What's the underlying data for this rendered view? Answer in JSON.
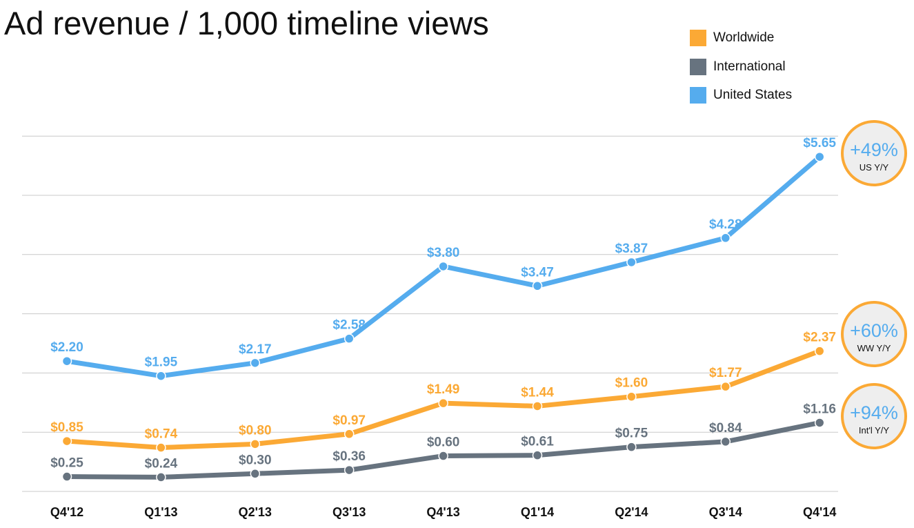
{
  "title": "Ad revenue / 1,000 timeline views",
  "legend": [
    {
      "name": "Worldwide",
      "color": "#FBA935"
    },
    {
      "name": "International",
      "color": "#67737F"
    },
    {
      "name": "United States",
      "color": "#55ACEE"
    }
  ],
  "chart_data": {
    "type": "line",
    "title": "Ad revenue / 1,000 timeline views",
    "categories": [
      "Q4'12",
      "Q1'13",
      "Q2'13",
      "Q3'13",
      "Q4'13",
      "Q1'14",
      "Q2'14",
      "Q3'14",
      "Q4'14"
    ],
    "ylim": [
      0,
      6
    ],
    "grid": true,
    "legend_position": "top-right",
    "series": [
      {
        "name": "United States",
        "color": "#55ACEE",
        "values": [
          2.2,
          1.95,
          2.17,
          2.58,
          3.8,
          3.47,
          3.87,
          4.28,
          5.65
        ],
        "labels": [
          "$2.20",
          "$1.95",
          "$2.17",
          "$2.58",
          "$3.80",
          "$3.47",
          "$3.87",
          "$4.28",
          "$5.65"
        ]
      },
      {
        "name": "Worldwide",
        "color": "#FBA935",
        "values": [
          0.85,
          0.74,
          0.8,
          0.97,
          1.49,
          1.44,
          1.6,
          1.77,
          2.37
        ],
        "labels": [
          "$0.85",
          "$0.74",
          "$0.80",
          "$0.97",
          "$1.49",
          "$1.44",
          "$1.60",
          "$1.77",
          "$2.37"
        ]
      },
      {
        "name": "International",
        "color": "#67737F",
        "values": [
          0.25,
          0.24,
          0.3,
          0.36,
          0.6,
          0.61,
          0.75,
          0.84,
          1.16
        ],
        "labels": [
          "$0.25",
          "$0.24",
          "$0.30",
          "$0.36",
          "$0.60",
          "$0.61",
          "$0.75",
          "$0.84",
          "$1.16"
        ]
      }
    ],
    "annotations": [
      {
        "value": "+49%",
        "label": "US Y/Y",
        "series": "United States"
      },
      {
        "value": "+60%",
        "label": "WW Y/Y",
        "series": "Worldwide"
      },
      {
        "value": "+94%",
        "label": "Int'l Y/Y",
        "series": "International"
      }
    ]
  }
}
